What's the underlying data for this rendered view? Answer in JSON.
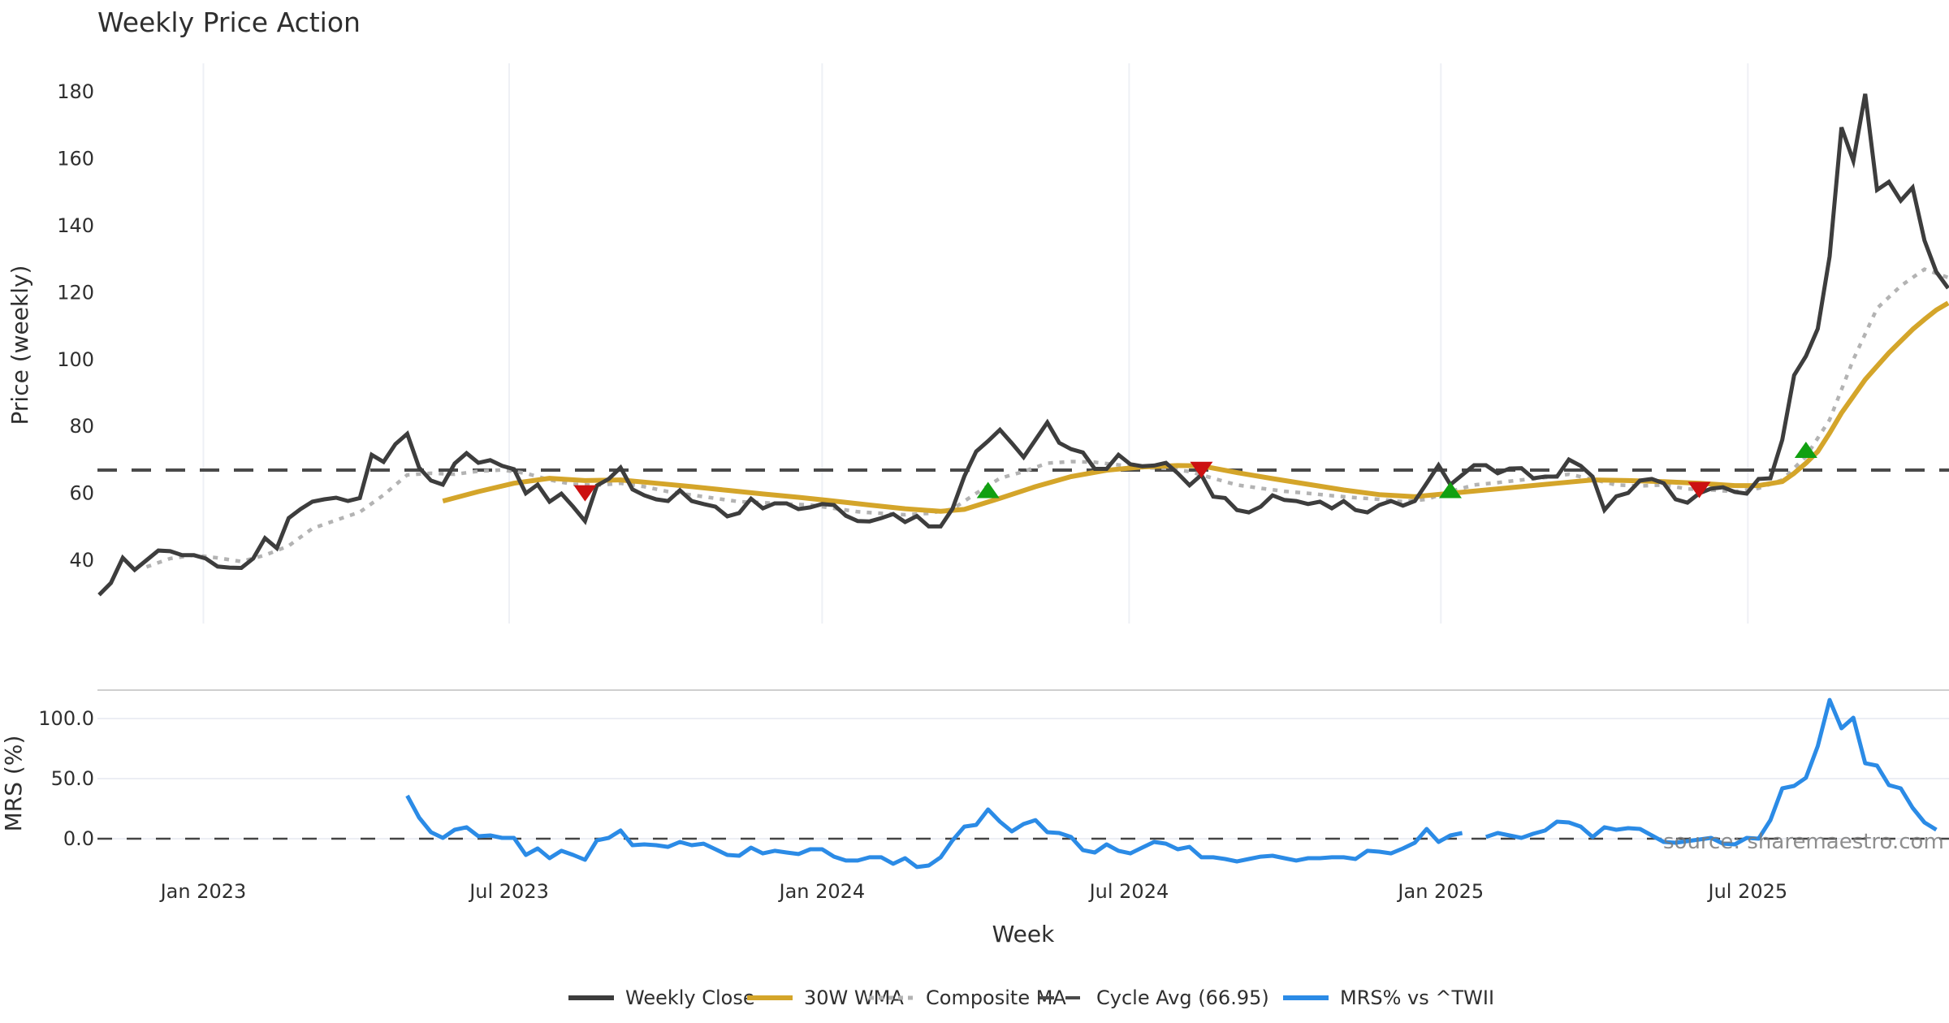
{
  "chart_data": [
    {
      "type": "line",
      "title": "Weekly Price Action",
      "xlabel": "Week",
      "ylabel": "Price (weekly)",
      "ylim": [
        25,
        185
      ],
      "yticks": [
        40,
        60,
        80,
        100,
        120,
        140,
        160,
        180
      ],
      "x_ticks": [
        {
          "label": "Jan 2023",
          "week_index": 8.8
        },
        {
          "label": "Jul 2023",
          "week_index": 34.6
        },
        {
          "label": "Jan 2024",
          "week_index": 61.0
        },
        {
          "label": "Jul 2024",
          "week_index": 86.9
        },
        {
          "label": "Jan 2025",
          "week_index": 113.2
        },
        {
          "label": "Jul 2025",
          "week_index": 139.1
        }
      ],
      "x_range_weeks": [
        0,
        156
      ],
      "grid": "vertical",
      "series": [
        {
          "name": "Weekly Close",
          "color": "#3d3d3d",
          "style": "solid",
          "start_index": 0,
          "values": [
            29.6,
            33.2,
            40.7,
            37.1,
            40.0,
            42.9,
            42.7,
            41.5,
            41.5,
            40.5,
            38.1,
            37.8,
            37.7,
            40.5,
            46.6,
            43.6,
            52.6,
            55.3,
            57.5,
            58.2,
            58.7,
            57.7,
            58.6,
            71.5,
            69.4,
            74.7,
            77.8,
            67.7,
            63.8,
            62.6,
            68.9,
            72.0,
            69.1,
            69.9,
            68.2,
            67.2,
            60.0,
            62.6,
            57.5,
            59.9,
            56.0,
            51.7,
            62.3,
            64.3,
            67.7,
            61.2,
            59.4,
            58.2,
            57.7,
            60.9,
            57.7,
            56.8,
            56.0,
            53.1,
            54.1,
            58.4,
            55.5,
            57.0,
            57.0,
            55.3,
            55.8,
            56.8,
            56.5,
            53.3,
            51.7,
            51.6,
            52.6,
            53.8,
            51.4,
            53.2,
            50.1,
            50.1,
            55.4,
            65.1,
            72.5,
            75.6,
            79.0,
            75.0,
            70.8,
            76.0,
            81.2,
            75.1,
            73.2,
            72.2,
            67.3,
            67.3,
            71.5,
            68.7,
            68.1,
            68.3,
            69.1,
            66.0,
            62.4,
            65.5,
            59.0,
            58.6,
            55.0,
            54.3,
            56.0,
            59.4,
            58.0,
            57.7,
            56.8,
            57.5,
            55.5,
            57.7,
            55.0,
            54.3,
            56.5,
            57.7,
            56.3,
            57.7,
            63.0,
            68.4,
            62.6,
            65.5,
            68.4,
            68.4,
            66.0,
            67.4,
            67.5,
            64.5,
            65.0,
            65.0,
            70.1,
            68.2,
            65.0,
            55.0,
            59.1,
            60.1,
            63.8,
            64.3,
            63.0,
            58.2,
            57.2,
            60.0,
            61.4,
            61.8,
            60.4,
            59.9,
            64.3,
            64.5,
            76.0,
            95.3,
            101.0,
            109.2,
            130.8,
            169.4,
            159.4,
            179.4,
            150.7,
            153.1,
            147.5,
            151.4,
            135.6,
            126.2,
            121.3
          ]
        },
        {
          "name": "30W WMA",
          "color": "#d4a52a",
          "style": "solid",
          "points": [
            [
              29,
              57.7
            ],
            [
              32,
              60.5
            ],
            [
              35,
              63.0
            ],
            [
              38,
              64.5
            ],
            [
              41,
              63.8
            ],
            [
              44,
              64.0
            ],
            [
              47,
              63.0
            ],
            [
              50,
              62.0
            ],
            [
              53,
              60.9
            ],
            [
              56,
              59.8
            ],
            [
              59,
              58.8
            ],
            [
              62,
              57.7
            ],
            [
              65,
              56.5
            ],
            [
              68,
              55.4
            ],
            [
              71,
              54.6
            ],
            [
              73,
              55.2
            ],
            [
              76,
              58.5
            ],
            [
              79,
              62.0
            ],
            [
              82,
              65.0
            ],
            [
              85,
              66.9
            ],
            [
              88,
              67.9
            ],
            [
              91,
              68.3
            ],
            [
              93,
              68.2
            ],
            [
              96,
              66.2
            ],
            [
              99,
              64.4
            ],
            [
              102,
              62.7
            ],
            [
              105,
              61.0
            ],
            [
              108,
              59.6
            ],
            [
              111,
              59.0
            ],
            [
              114,
              60.0
            ],
            [
              117,
              61.0
            ],
            [
              120,
              62.0
            ],
            [
              123,
              63.0
            ],
            [
              126,
              64.0
            ],
            [
              129,
              63.8
            ],
            [
              132,
              63.5
            ],
            [
              135,
              63.0
            ],
            [
              138,
              62.3
            ],
            [
              140,
              62.3
            ],
            [
              142,
              63.5
            ],
            [
              143,
              66.0
            ],
            [
              144,
              69.0
            ],
            [
              145,
              72.5
            ],
            [
              146,
              78.0
            ],
            [
              147,
              84.0
            ],
            [
              148,
              89.0
            ],
            [
              149,
              94.0
            ],
            [
              150,
              98.0
            ],
            [
              151,
              102.0
            ],
            [
              152,
              105.5
            ],
            [
              153,
              109.0
            ],
            [
              154,
              112.0
            ],
            [
              155,
              114.8
            ],
            [
              156,
              116.9
            ]
          ]
        },
        {
          "name": "Composite MA",
          "color": "#b3b3b3",
          "style": "dotted",
          "points": [
            [
              4,
              38.0
            ],
            [
              6,
              40.5
            ],
            [
              8,
              41.5
            ],
            [
              10,
              40.7
            ],
            [
              12,
              39.6
            ],
            [
              14,
              41.5
            ],
            [
              16,
              44.3
            ],
            [
              18,
              49.5
            ],
            [
              20,
              52.0
            ],
            [
              22,
              54.4
            ],
            [
              24,
              59.5
            ],
            [
              26,
              65.5
            ],
            [
              28,
              66.0
            ],
            [
              30,
              65.7
            ],
            [
              32,
              66.6
            ],
            [
              34,
              67.0
            ],
            [
              36,
              66.0
            ],
            [
              38,
              64.0
            ],
            [
              40,
              62.7
            ],
            [
              42,
              62.4
            ],
            [
              44,
              63.0
            ],
            [
              46,
              62.0
            ],
            [
              48,
              60.5
            ],
            [
              50,
              59.5
            ],
            [
              52,
              58.5
            ],
            [
              54,
              57.5
            ],
            [
              56,
              57.2
            ],
            [
              58,
              56.8
            ],
            [
              60,
              56.5
            ],
            [
              62,
              55.5
            ],
            [
              64,
              54.5
            ],
            [
              66,
              54.0
            ],
            [
              68,
              53.6
            ],
            [
              70,
              54.0
            ],
            [
              72,
              55.3
            ],
            [
              74,
              60.0
            ],
            [
              76,
              64.5
            ],
            [
              78,
              66.5
            ],
            [
              80,
              69.0
            ],
            [
              82,
              69.5
            ],
            [
              84,
              69.3
            ],
            [
              86,
              68.5
            ],
            [
              88,
              67.7
            ],
            [
              90,
              67.5
            ],
            [
              92,
              66.5
            ],
            [
              94,
              64.5
            ],
            [
              96,
              62.5
            ],
            [
              98,
              61.5
            ],
            [
              100,
              60.6
            ],
            [
              102,
              60.0
            ],
            [
              104,
              59.3
            ],
            [
              106,
              58.7
            ],
            [
              108,
              58.2
            ],
            [
              110,
              57.5
            ],
            [
              112,
              58.2
            ],
            [
              114,
              60.5
            ],
            [
              116,
              62.5
            ],
            [
              118,
              63.2
            ],
            [
              120,
              64.0
            ],
            [
              122,
              64.7
            ],
            [
              124,
              65.7
            ],
            [
              126,
              64.2
            ],
            [
              128,
              62.5
            ],
            [
              130,
              62.2
            ],
            [
              132,
              62.5
            ],
            [
              134,
              61.3
            ],
            [
              136,
              61.0
            ],
            [
              138,
              60.5
            ],
            [
              140,
              61.5
            ],
            [
              142,
              64.0
            ],
            [
              144,
              71.0
            ],
            [
              146,
              82.0
            ],
            [
              148,
              100.0
            ],
            [
              150,
              115.3
            ],
            [
              152,
              122.0
            ],
            [
              154,
              127.0
            ],
            [
              156,
              124.5
            ]
          ]
        },
        {
          "name": "Cycle Avg (66.95)",
          "color": "#4a4a4a",
          "style": "dashed",
          "value": 66.95
        }
      ],
      "signals": [
        {
          "type": "sell",
          "index": 41,
          "value": 60,
          "color": "#cc1111"
        },
        {
          "type": "buy",
          "index": 75,
          "value": 61,
          "color": "#11a011"
        },
        {
          "type": "sell",
          "index": 93,
          "value": 67,
          "color": "#cc1111"
        },
        {
          "type": "buy",
          "index": 114,
          "value": 61,
          "color": "#11a011"
        },
        {
          "type": "sell",
          "index": 135,
          "value": 61,
          "color": "#cc1111"
        },
        {
          "type": "buy",
          "index": 144,
          "value": 73,
          "color": "#11a011"
        }
      ]
    },
    {
      "type": "line",
      "title": "",
      "xlabel": "Week",
      "ylabel": "MRS (%)",
      "ylim": [
        -30,
        120
      ],
      "yticks": [
        "100.0",
        "50.0",
        "0.0"
      ],
      "ytick_values": [
        100,
        50,
        0
      ],
      "zero_line": {
        "value": 0,
        "style": "dashed",
        "color": "#444444"
      },
      "series": [
        {
          "name": "MRS% vs ^TWII",
          "color": "#2b8be6",
          "start_index": 26,
          "values": [
            35.8,
            17.6,
            5.4,
            0.7,
            7.4,
            9.5,
            2.0,
            2.7,
            0.7,
            0.7,
            -13.5,
            -8.1,
            -16.2,
            -10.1,
            -13.5,
            -17.6,
            -1.4,
            0.7,
            6.8,
            -5.4,
            -4.7,
            -5.4,
            -6.8,
            -2.7,
            -5.4,
            -4.1,
            -8.8,
            -13.5,
            -14.2,
            -7.4,
            -12.2,
            -10.1,
            -11.5,
            -12.8,
            -8.8,
            -8.8,
            -14.9,
            -18.2,
            -18.2,
            -15.5,
            -15.5,
            -20.9,
            -16.2,
            -23.6,
            -22.3,
            -15.5,
            -1.4,
            10.1,
            11.5,
            24.3,
            14.2,
            6.1,
            12.2,
            15.5,
            5.4,
            4.7,
            1.4,
            -9.5,
            -11.5,
            -4.7,
            -10.1,
            -12.2,
            -7.4,
            -2.7,
            -4.1,
            -8.8,
            -6.8,
            -15.5,
            -15.5,
            -16.9,
            -18.9,
            -16.9,
            -14.9,
            -14.2,
            -16.2,
            -18.2,
            -16.2,
            -16.2,
            -15.5,
            -15.5,
            -16.9,
            -10.1,
            -10.8,
            -12.2,
            -8.1,
            -3.4,
            8.1,
            -2.7,
            2.7,
            4.7,
            null,
            1.4,
            4.7,
            2.7,
            0.7,
            4.1,
            6.8,
            14.2,
            13.5,
            10.1,
            1.4,
            9.5,
            7.4,
            8.8,
            8.1,
            2.7,
            -2.7,
            -3.4,
            -2.0,
            -0.7,
            0.7,
            -4.1,
            -4.7,
            0.7,
            0.0,
            15.5,
            41.9,
            43.9,
            50.7,
            77.0,
            115.5,
            91.9,
            100.7,
            62.8,
            60.8,
            44.6,
            41.9,
            25.7,
            13.5,
            7.4
          ]
        }
      ]
    }
  ],
  "title": "Weekly Price Action",
  "xlabel": "Week",
  "ylabel_price": "Price (weekly)",
  "ylabel_mrs": "MRS (%)",
  "watermark": "source: sharemaestro.com",
  "legend": {
    "placement": "bottom-center",
    "items": [
      {
        "label": "Weekly Close",
        "color": "#3d3d3d",
        "style": "solid"
      },
      {
        "label": "30W WMA",
        "color": "#d4a52a",
        "style": "solid"
      },
      {
        "label": "Composite MA",
        "color": "#b3b3b3",
        "style": "dotted"
      },
      {
        "label": "Cycle Avg (66.95)",
        "color": "#4a4a4a",
        "style": "dashed"
      },
      {
        "label": "MRS% vs ^TWII",
        "color": "#2b8be6",
        "style": "solid"
      }
    ]
  }
}
